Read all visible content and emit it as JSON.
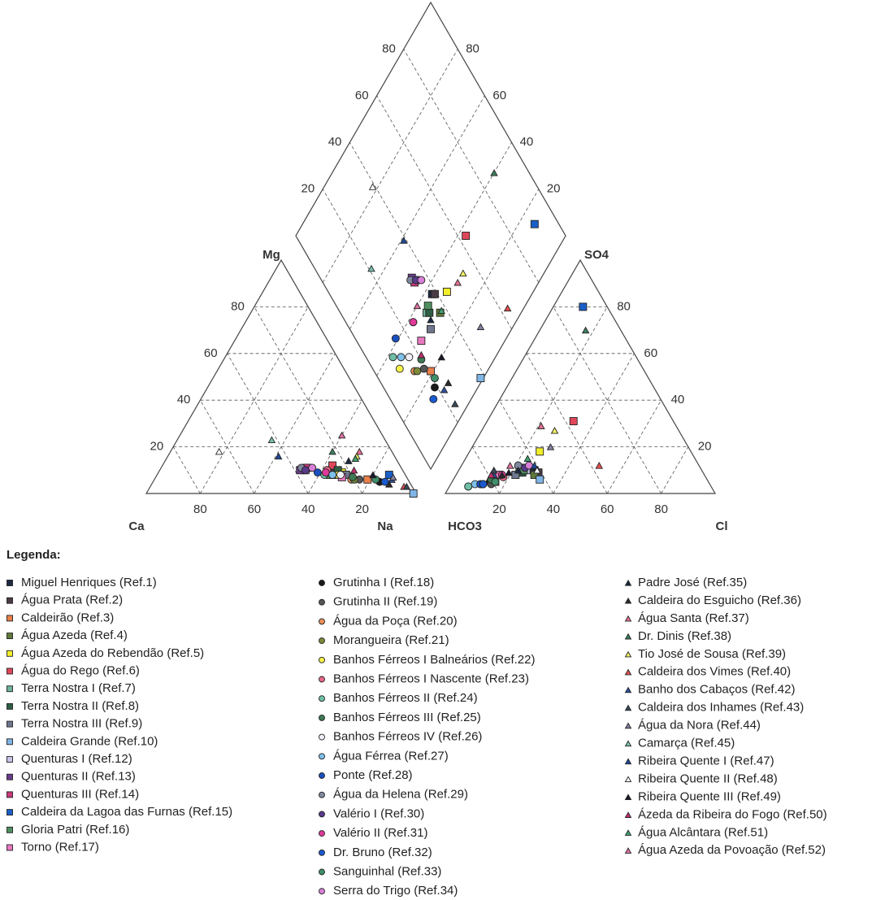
{
  "chart_data": {
    "type": "piper",
    "cation_labels": {
      "ca": "Ca",
      "mg": "Mg",
      "na": "Na"
    },
    "anion_labels": {
      "hco3": "HCO3",
      "so4": "SO4",
      "cl": "Cl"
    },
    "ca_ticks": [
      80,
      60,
      40,
      20
    ],
    "mg_ticks": [
      20,
      40,
      60,
      80
    ],
    "cl_ticks": [
      20,
      40,
      60,
      80
    ],
    "so4_ticks": [
      20,
      40,
      60,
      80
    ],
    "diamond_so4cl_ticks": [
      20,
      40,
      60,
      80
    ],
    "diamond_camg_ticks": [
      80,
      60,
      40,
      20
    ],
    "grid": true,
    "legend_title": "Legenda:",
    "series": [
      {
        "name": "Miguel Henriques (Ref.1)",
        "color": "#1f2a44",
        "marker": "square",
        "cations": [
          27,
          10,
          63
        ],
        "anions": [
          62,
          10,
          28
        ]
      },
      {
        "name": "Água Prata (Ref.2)",
        "color": "#4a3b45",
        "marker": "square",
        "cations": [
          26,
          10,
          64
        ],
        "anions": [
          61,
          9,
          30
        ]
      },
      {
        "name": "Caldeirão (Ref.3)",
        "color": "#e8804a",
        "marker": "square",
        "cations": [
          15,
          6,
          79
        ],
        "anions": [
          79,
          5,
          16
        ]
      },
      {
        "name": "Água Azeda (Ref.4)",
        "color": "#5f7a3a",
        "marker": "square",
        "cations": [
          22,
          8,
          70
        ],
        "anions": [
          63,
          8,
          29
        ]
      },
      {
        "name": "Água Azeda do Rebendão (Ref.5)",
        "color": "#f2ee2a",
        "marker": "square",
        "cations": [
          23,
          9,
          68
        ],
        "anions": [
          56,
          18,
          26
        ]
      },
      {
        "name": "Água do Rego (Ref.6)",
        "color": "#e0475a",
        "marker": "square",
        "cations": [
          25,
          12,
          63
        ],
        "anions": [
          37,
          31,
          32
        ]
      },
      {
        "name": "Terra Nostra I (Ref.7)",
        "color": "#6fb39a",
        "marker": "square",
        "cations": [
          27,
          8,
          65
        ],
        "anions": [
          68,
          9,
          23
        ]
      },
      {
        "name": "Terra Nostra II (Ref.8)",
        "color": "#2f5e45",
        "marker": "square",
        "cations": [
          24,
          10,
          66
        ],
        "anions": [
          67,
          9,
          24
        ]
      },
      {
        "name": "Terra Nostra III (Ref.9)",
        "color": "#707890",
        "marker": "square",
        "cations": [
          22,
          8,
          70
        ],
        "anions": [
          70,
          8,
          22
        ]
      },
      {
        "name": "Caldeira Grande (Ref.10)",
        "color": "#7fb6e6",
        "marker": "square",
        "cations": [
          1,
          0,
          99
        ],
        "anions": [
          62,
          6,
          32
        ]
      },
      {
        "name": "Quenturas I (Ref.12)",
        "color": "#c8c4e8",
        "marker": "square",
        "cations": [
          36,
          10,
          54
        ],
        "anions": [
          65,
          10,
          25
        ]
      },
      {
        "name": "Quenturas II (Ref.13)",
        "color": "#6a3a8a",
        "marker": "square",
        "cations": [
          38,
          10,
          52
        ],
        "anions": [
          66,
          11,
          23
        ]
      },
      {
        "name": "Quenturas III (Ref.14)",
        "color": "#c83a7a",
        "marker": "square",
        "cations": [
          35,
          11,
          54
        ],
        "anions": [
          66,
          10,
          24
        ]
      },
      {
        "name": "Caldeira da Lagoa das Furnas (Ref.15)",
        "color": "#1a5fc8",
        "marker": "square",
        "cations": [
          6,
          8,
          86
        ],
        "anions": [
          9,
          80,
          11
        ]
      },
      {
        "name": "Gloria Patri (Ref.16)",
        "color": "#4f8f5f",
        "marker": "square",
        "cations": [
          28,
          8,
          64
        ],
        "anions": [
          66,
          10,
          24
        ]
      },
      {
        "name": "Torno (Ref.17)",
        "color": "#e879c0",
        "marker": "square",
        "cations": [
          24,
          7,
          69
        ],
        "anions": [
          76,
          8,
          16
        ]
      },
      {
        "name": "Grutinha I (Ref.18)",
        "color": "#1a1a1a",
        "marker": "circle",
        "cations": [
          11,
          5,
          84
        ],
        "anions": [
          81,
          5,
          14
        ]
      },
      {
        "name": "Grutinha II (Ref.19)",
        "color": "#555555",
        "marker": "circle",
        "cations": [
          18,
          6,
          76
        ],
        "anions": [
          81,
          4,
          15
        ]
      },
      {
        "name": "Água da Poça (Ref.20)",
        "color": "#e8905a",
        "marker": "circle",
        "cations": [
          21,
          6,
          73
        ],
        "anions": [
          85,
          4,
          11
        ]
      },
      {
        "name": "Morangueira (Ref.21)",
        "color": "#7a8a3a",
        "marker": "circle",
        "cations": [
          20,
          6,
          74
        ],
        "anions": [
          84,
          4,
          12
        ]
      },
      {
        "name": "Banhos Férreos I Balneários (Ref.22)",
        "color": "#f5f04a",
        "marker": "circle",
        "cations": [
          25,
          8,
          67
        ],
        "anions": [
          90,
          3,
          7
        ]
      },
      {
        "name": "Banhos Férreos I Nascente (Ref.23)",
        "color": "#e86a8a",
        "marker": "circle",
        "cations": [
          28,
          10,
          62
        ],
        "anions": [
          75,
          7,
          18
        ]
      },
      {
        "name": "Banhos Férreos II (Ref.24)",
        "color": "#6fbfa6",
        "marker": "circle",
        "cations": [
          30,
          8,
          62
        ],
        "anions": [
          90,
          3,
          7
        ]
      },
      {
        "name": "Banhos Férreos III (Ref.25)",
        "color": "#3f7a55",
        "marker": "circle",
        "cations": [
          20,
          7,
          73
        ],
        "anions": [
          80,
          6,
          14
        ]
      },
      {
        "name": "Banhos Férreos IV (Ref.26)",
        "color": "#f0f0f8",
        "marker": "circle",
        "cations": [
          24,
          8,
          68
        ],
        "anions": [
          84,
          4,
          12
        ]
      },
      {
        "name": "Água Férrea (Ref.27)",
        "color": "#7fc0ea",
        "marker": "circle",
        "cations": [
          27,
          8,
          65
        ],
        "anions": [
          87,
          4,
          9
        ]
      },
      {
        "name": "Ponte (Ref.28)",
        "color": "#1a4fc0",
        "marker": "circle",
        "cations": [
          32,
          9,
          59
        ],
        "anions": [
          85,
          4,
          11
        ]
      },
      {
        "name": "Água da Helena (Ref.29)",
        "color": "#8088a0",
        "marker": "circle",
        "cations": [
          37,
          11,
          52
        ],
        "anions": [
          67,
          12,
          21
        ]
      },
      {
        "name": "Valério I (Ref.30)",
        "color": "#5a3a8a",
        "marker": "circle",
        "cations": [
          36,
          10,
          54
        ],
        "anions": [
          65,
          11,
          24
        ]
      },
      {
        "name": "Valério II (Ref.31)",
        "color": "#e03a9a",
        "marker": "circle",
        "cations": [
          29,
          9,
          62
        ],
        "anions": [
          75,
          8,
          17
        ]
      },
      {
        "name": "Dr. Bruno (Ref.32)",
        "color": "#1a5ad0",
        "marker": "circle",
        "cations": [
          9,
          5,
          86
        ],
        "anions": [
          84,
          4,
          12
        ]
      },
      {
        "name": "Sanguinhal (Ref.33)",
        "color": "#3f8f6a",
        "marker": "circle",
        "cations": [
          12,
          6,
          82
        ],
        "anions": [
          79,
          5,
          16
        ]
      },
      {
        "name": "Serra do Trigo (Ref.34)",
        "color": "#d880d8",
        "marker": "circle",
        "cations": [
          33,
          11,
          56
        ],
        "anions": [
          63,
          12,
          25
        ]
      },
      {
        "name": "Padre José (Ref.35)",
        "color": "#1a2a44",
        "marker": "triangle",
        "cations": [
          18,
          14,
          68
        ],
        "anions": [
          68,
          10,
          22
        ]
      },
      {
        "name": "Caldeira do Esguicho (Ref.36)",
        "color": "#2a2a2a",
        "marker": "triangle",
        "cations": [
          8,
          4,
          88
        ],
        "anions": [
          75,
          8,
          17
        ]
      },
      {
        "name": "Água Santa (Ref.37)",
        "color": "#e87090",
        "marker": "triangle",
        "cations": [
          12,
          18,
          70
        ],
        "anions": [
          50,
          29,
          21
        ]
      },
      {
        "name": "Dr. Dinis (Ref.38)",
        "color": "#3f8060",
        "marker": "triangle",
        "cations": [
          22,
          18,
          60
        ],
        "anions": [
          13,
          70,
          17
        ]
      },
      {
        "name": "Tio José de Sousa (Ref.39)",
        "color": "#f0f060",
        "marker": "triangle",
        "cations": [
          14,
          16,
          70
        ],
        "anions": [
          46,
          27,
          27
        ]
      },
      {
        "name": "Caldeira dos Vimes (Ref.40)",
        "color": "#e85050",
        "marker": "triangle",
        "cations": [
          3,
          3,
          94
        ],
        "anions": [
          37,
          12,
          51
        ]
      },
      {
        "name": "Banho dos Cabaços (Ref.42)",
        "color": "#3050a0",
        "marker": "triangle",
        "cations": [
          6,
          6,
          88
        ],
        "anions": [
          78,
          8,
          14
        ]
      },
      {
        "name": "Caldeira dos Inhames (Ref.43)",
        "color": "#3a4a5a",
        "marker": "triangle",
        "cations": [
          2,
          3,
          95
        ],
        "anions": [
          77,
          10,
          13
        ]
      },
      {
        "name": "Água da Nora (Ref.44)",
        "color": "#8080a0",
        "marker": "triangle",
        "cations": [
          5,
          7,
          88
        ],
        "anions": [
          51,
          20,
          29
        ]
      },
      {
        "name": "Camarça (Ref.45)",
        "color": "#7ac0b0",
        "marker": "triangle",
        "cations": [
          42,
          23,
          35
        ],
        "anions": [
          79,
          8,
          13
        ]
      },
      {
        "name": "Ribeira Quente I (Ref.47)",
        "color": "#1f4a9a",
        "marker": "triangle",
        "cations": [
          43,
          16,
          41
        ],
        "anions": [
          61,
          12,
          27
        ]
      },
      {
        "name": "Ribeira Quente II (Ref.48)",
        "color": "#ffffff",
        "marker": "triangle",
        "cations": [
          64,
          18,
          18
        ],
        "anions": [
          61,
          10,
          29
        ]
      },
      {
        "name": "Ribeira Quente III (Ref.49)",
        "color": "#1a1a2a",
        "marker": "triangle",
        "cations": [
          12,
          8,
          80
        ],
        "anions": [
          72,
          9,
          19
        ]
      },
      {
        "name": "Ázeda da Ribeira do Fogo (Ref.50)",
        "color": "#c03070",
        "marker": "triangle",
        "cations": [
          18,
          10,
          72
        ],
        "anions": [
          79,
          8,
          13
        ]
      },
      {
        "name": "Água Alcântara (Ref.51)",
        "color": "#40a070",
        "marker": "triangle",
        "cations": [
          15,
          15,
          70
        ],
        "anions": [
          62,
          15,
          23
        ]
      },
      {
        "name": "Água Azeda da Povoação (Ref.52)",
        "color": "#e070a0",
        "marker": "triangle",
        "cations": [
          15,
          25,
          60
        ],
        "anions": [
          70,
          12,
          18
        ]
      }
    ]
  }
}
